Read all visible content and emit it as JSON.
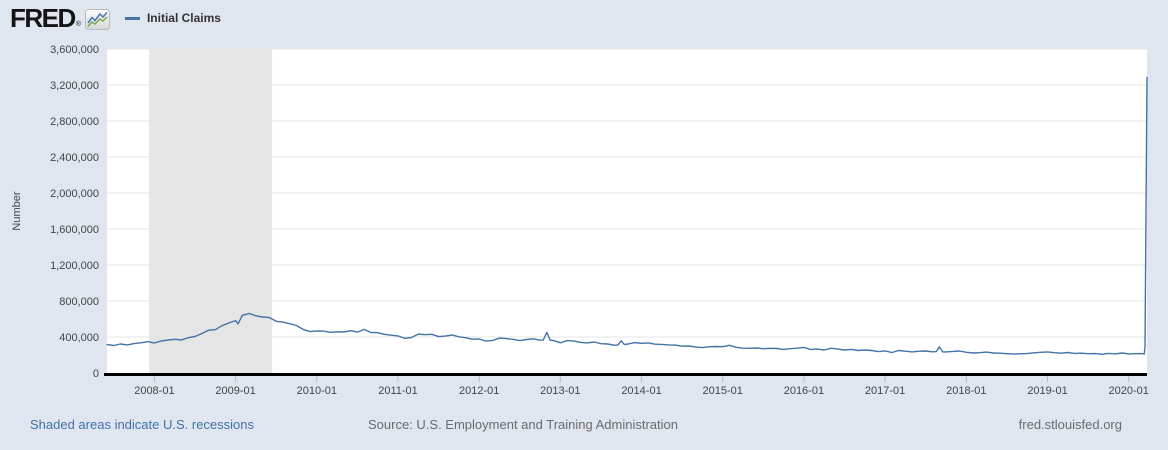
{
  "header": {
    "logo_text": "FRED",
    "logo_registered": "®",
    "legend": {
      "label": "Initial Claims",
      "color": "#4572a7"
    }
  },
  "footer": {
    "recession_note": "Shaded areas indicate U.S. recessions",
    "source": "Source: U.S. Employment and Training Administration",
    "site": "fred.stlouisfed.org"
  },
  "colors": {
    "page_background": "#dfe6ef",
    "plot_background": "#ffffff",
    "line": "#4572a7",
    "recession_band": "#e5e5e5",
    "gridline": "#e6e6e6",
    "axis_line": "#000000",
    "tick_mark": "#a9bdd3",
    "tick_text": "#444444",
    "link_blue": "#4470a6"
  },
  "chart_data": {
    "type": "line",
    "title": "Initial Claims",
    "series_name": "Initial Claims",
    "xlabel": "",
    "ylabel": "Number",
    "grid": true,
    "legend_position": "top-left",
    "xlim": [
      2007.4167,
      2020.225
    ],
    "ylim": [
      0,
      3600000
    ],
    "line_color": "#4572a7",
    "recession_color": "#e5e5e5",
    "x_ticks": [
      {
        "value": 2008,
        "label": "2008-01"
      },
      {
        "value": 2009,
        "label": "2009-01"
      },
      {
        "value": 2010,
        "label": "2010-01"
      },
      {
        "value": 2011,
        "label": "2011-01"
      },
      {
        "value": 2012,
        "label": "2012-01"
      },
      {
        "value": 2013,
        "label": "2013-01"
      },
      {
        "value": 2014,
        "label": "2014-01"
      },
      {
        "value": 2015,
        "label": "2015-01"
      },
      {
        "value": 2016,
        "label": "2016-01"
      },
      {
        "value": 2017,
        "label": "2017-01"
      },
      {
        "value": 2018,
        "label": "2018-01"
      },
      {
        "value": 2019,
        "label": "2019-01"
      },
      {
        "value": 2020,
        "label": "2020-01"
      }
    ],
    "y_ticks": [
      {
        "value": 0,
        "label": "0"
      },
      {
        "value": 400000,
        "label": "400,000"
      },
      {
        "value": 800000,
        "label": "800,000"
      },
      {
        "value": 1200000,
        "label": "1,200,000"
      },
      {
        "value": 1600000,
        "label": "1,600,000"
      },
      {
        "value": 2000000,
        "label": "2,000,000"
      },
      {
        "value": 2400000,
        "label": "2,400,000"
      },
      {
        "value": 2800000,
        "label": "2,800,000"
      },
      {
        "value": 3200000,
        "label": "3,200,000"
      },
      {
        "value": 3600000,
        "label": "3,600,000"
      }
    ],
    "recessions": [
      {
        "start": 2007.935,
        "end": 2009.45
      }
    ],
    "points_start": 2007.4167,
    "points_step_years": 0.0833333,
    "values": [
      315000,
      306000,
      322000,
      312000,
      327000,
      336000,
      348000,
      334000,
      356000,
      366000,
      374000,
      368000,
      392000,
      406000,
      438000,
      474000,
      482000,
      526000,
      556000,
      582000,
      640000,
      662000,
      636000,
      622000,
      616000,
      574000,
      566000,
      548000,
      528000,
      484000,
      460000,
      468000,
      466000,
      452000,
      458000,
      456000,
      470000,
      454000,
      484000,
      450000,
      448000,
      430000,
      420000,
      412000,
      386000,
      394000,
      432000,
      426000,
      430000,
      404000,
      410000,
      422000,
      402000,
      392000,
      376000,
      378000,
      354000,
      362000,
      388000,
      382000,
      374000,
      360000,
      372000,
      380000,
      364000,
      451000,
      360000,
      336000,
      360000,
      354000,
      340000,
      334000,
      344000,
      326000,
      322000,
      308000,
      358000,
      322000,
      338000,
      330000,
      334000,
      320000,
      318000,
      312000,
      310000,
      298000,
      300000,
      288000,
      282000,
      292000,
      294000,
      292000,
      308000,
      286000,
      276000,
      274000,
      278000,
      270000,
      274000,
      272000,
      262000,
      270000,
      276000,
      284000,
      262000,
      266000,
      256000,
      276000,
      266000,
      256000,
      262000,
      250000,
      256000,
      250000,
      238000,
      246000,
      228000,
      250000,
      242000,
      234000,
      242000,
      244000,
      236000,
      290000,
      234000,
      240000,
      244000,
      230000,
      222000,
      226000,
      232000,
      222000,
      220000,
      214000,
      210000,
      214000,
      216000,
      224000,
      230000,
      234000,
      226000,
      220000,
      228000,
      218000,
      220000,
      214000,
      216000,
      208000,
      218000,
      212000,
      222000,
      212000,
      214000
    ],
    "extra_points": [
      [
        2009.03,
        546000
      ],
      [
        2012.79,
        368000
      ],
      [
        2012.875,
        364000
      ],
      [
        2013.71,
        312000
      ],
      [
        2013.79,
        316000
      ],
      [
        2017.63,
        238000
      ],
      [
        2017.71,
        234000
      ],
      [
        2020.15,
        216000
      ],
      [
        2020.19,
        211000
      ],
      [
        2020.2,
        282000
      ],
      [
        2020.225,
        3283000
      ]
    ]
  }
}
